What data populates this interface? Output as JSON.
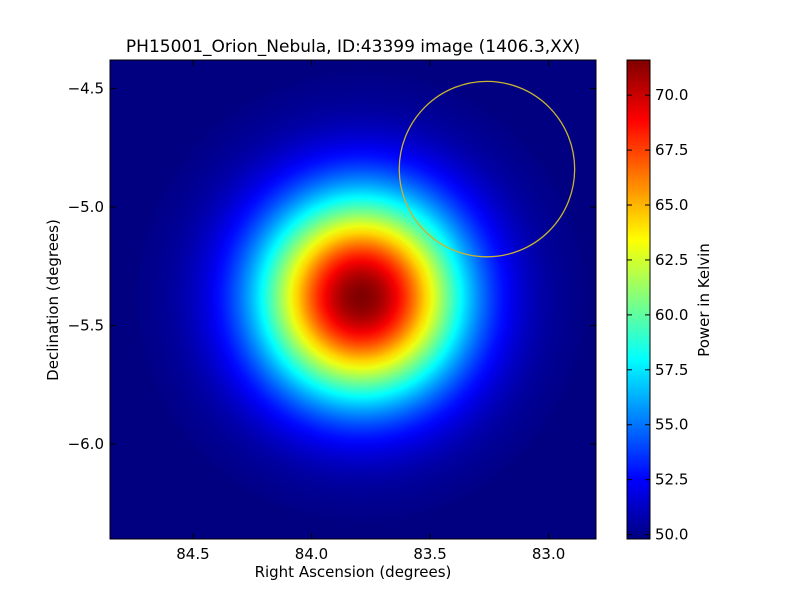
{
  "chart_data": {
    "type": "heatmap",
    "title": "PH15001_Orion_Nebula, ID:43399 image (1406.3,XX)",
    "xlabel": "Right Ascension (degrees)",
    "ylabel": "Declination (degrees)",
    "xlim": [
      84.85,
      82.8
    ],
    "ylim": [
      -6.4,
      -4.38
    ],
    "x_inverted": true,
    "xticks": [
      {
        "value": 84.5,
        "label": "84.5"
      },
      {
        "value": 84.0,
        "label": "84.0"
      },
      {
        "value": 83.5,
        "label": "83.5"
      },
      {
        "value": 83.0,
        "label": "83.0"
      }
    ],
    "yticks": [
      {
        "value": -4.5,
        "label": "−4.5"
      },
      {
        "value": -5.0,
        "label": "−5.0"
      },
      {
        "value": -5.5,
        "label": "−5.5"
      },
      {
        "value": -6.0,
        "label": "−6.0"
      }
    ],
    "colormap": "jet",
    "source": {
      "center_ra": 83.79,
      "center_dec": -5.38,
      "peak_value": 71.6,
      "background_value": 49.8,
      "sigma_deg": 0.3
    },
    "overlay_circle": {
      "center_ra": 83.26,
      "center_dec": -4.84,
      "radius_deg": 0.37,
      "color": "#c8b432"
    },
    "colorbar": {
      "label": "Power in Kelvin",
      "range": [
        49.8,
        71.6
      ],
      "ticks": [
        {
          "value": 50.0,
          "label": "50.0"
        },
        {
          "value": 52.5,
          "label": "52.5"
        },
        {
          "value": 55.0,
          "label": "55.0"
        },
        {
          "value": 57.5,
          "label": "57.5"
        },
        {
          "value": 60.0,
          "label": "60.0"
        },
        {
          "value": 62.5,
          "label": "62.5"
        },
        {
          "value": 65.0,
          "label": "65.0"
        },
        {
          "value": 67.5,
          "label": "67.5"
        },
        {
          "value": 70.0,
          "label": "70.0"
        }
      ]
    },
    "grid": false
  }
}
